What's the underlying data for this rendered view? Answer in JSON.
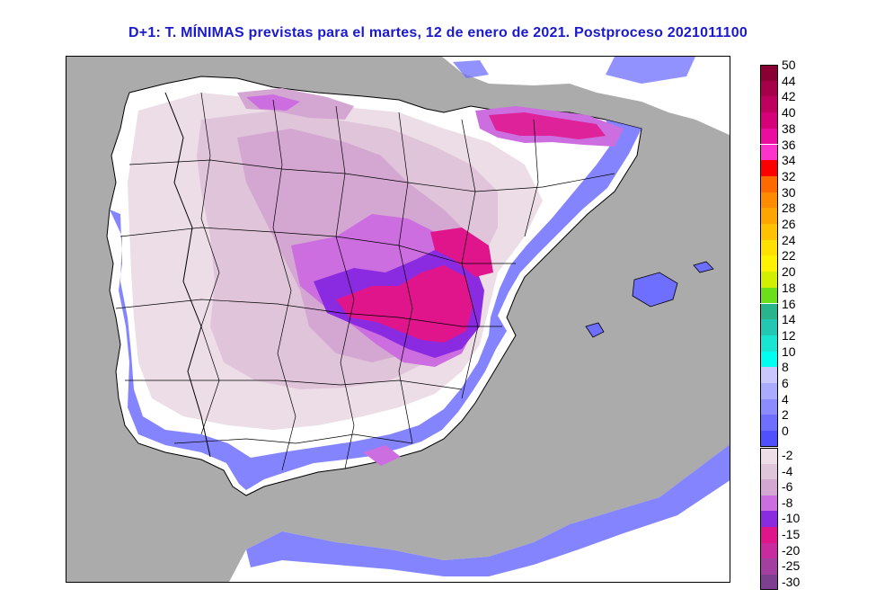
{
  "title": "D+1: T. MÍNIMAS previstas para el martes, 12 de enero de 2021. Postproceso 2021011100",
  "map": {
    "type": "temperature-forecast-map",
    "region": "iberian-peninsula",
    "sea_color": "#ababab",
    "land_base_color": "#ffffff"
  },
  "legend": {
    "upper": [
      {
        "label": "50",
        "color": "#8b0034"
      },
      {
        "label": "44",
        "color": "#a6004a"
      },
      {
        "label": "42",
        "color": "#c0005f"
      },
      {
        "label": "40",
        "color": "#d6007a"
      },
      {
        "label": "38",
        "color": "#ea0da0"
      },
      {
        "label": "36",
        "color": "#ff33cc"
      },
      {
        "label": "34",
        "color": "#ff0000"
      },
      {
        "label": "32",
        "color": "#ff6a00"
      },
      {
        "label": "30",
        "color": "#ff8c00"
      },
      {
        "label": "28",
        "color": "#ffa500"
      },
      {
        "label": "26",
        "color": "#ffc200"
      },
      {
        "label": "24",
        "color": "#ffe000"
      },
      {
        "label": "22",
        "color": "#fff200"
      },
      {
        "label": "20",
        "color": "#d2ef00"
      },
      {
        "label": "18",
        "color": "#6be01a"
      },
      {
        "label": "16",
        "color": "#28b48c"
      },
      {
        "label": "14",
        "color": "#23c8b4"
      },
      {
        "label": "12",
        "color": "#19e6d2"
      },
      {
        "label": "10",
        "color": "#00fff0"
      },
      {
        "label": "8",
        "color": "#c8c8ff"
      },
      {
        "label": "6",
        "color": "#aaaaff"
      },
      {
        "label": "4",
        "color": "#8c8cff"
      },
      {
        "label": "2",
        "color": "#6e6eff"
      },
      {
        "label": "0",
        "color": "#5050ff"
      }
    ],
    "lower": [
      {
        "label": "-2",
        "color": "#ecdde6"
      },
      {
        "label": "-4",
        "color": "#e0c4da"
      },
      {
        "label": "-6",
        "color": "#d4a6d2"
      },
      {
        "label": "-8",
        "color": "#cc6ee0"
      },
      {
        "label": "-10",
        "color": "#8a2be2"
      },
      {
        "label": "-15",
        "color": "#e0158c"
      },
      {
        "label": "-20",
        "color": "#c82aa0"
      },
      {
        "label": "-25",
        "color": "#a33fa0"
      },
      {
        "label": "-30",
        "color": "#7f3f90"
      }
    ]
  }
}
